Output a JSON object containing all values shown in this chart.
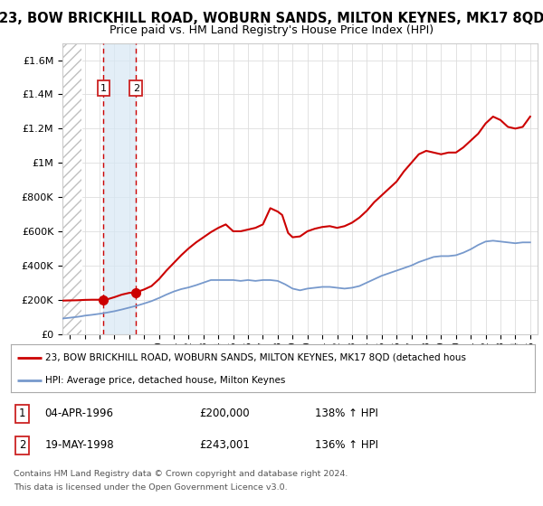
{
  "title": "23, BOW BRICKHILL ROAD, WOBURN SANDS, MILTON KEYNES, MK17 8QD",
  "subtitle": "Price paid vs. HM Land Registry's House Price Index (HPI)",
  "red_line_color": "#cc0000",
  "blue_line_color": "#7799cc",
  "dashed_color": "#cc0000",
  "highlight_bg": "#d8e8f5",
  "transaction1_year": 1996.27,
  "transaction1_price": 200000,
  "transaction2_year": 1998.45,
  "transaction2_price": 243001,
  "legend_line1": "23, BOW BRICKHILL ROAD, WOBURN SANDS, MILTON KEYNES, MK17 8QD (detached hous",
  "legend_line2": "HPI: Average price, detached house, Milton Keynes",
  "footer_line1": "Contains HM Land Registry data © Crown copyright and database right 2024.",
  "footer_line2": "This data is licensed under the Open Government Licence v3.0.",
  "table": [
    [
      "1",
      "04-APR-1996",
      "£200,000",
      "138% ↑ HPI"
    ],
    [
      "2",
      "19-MAY-1998",
      "£243,001",
      "136% ↑ HPI"
    ]
  ],
  "ylim": [
    0,
    1700000
  ],
  "xlim": [
    1993.5,
    2025.5
  ],
  "hatch_end": 1994.75,
  "red_x": [
    1993.5,
    1994.0,
    1994.5,
    1994.75,
    1995.0,
    1995.5,
    1996.0,
    1996.27,
    1996.5,
    1997.0,
    1997.5,
    1998.0,
    1998.45,
    1999.0,
    1999.5,
    2000.0,
    2000.5,
    2001.0,
    2001.5,
    2002.0,
    2002.5,
    2003.0,
    2003.5,
    2004.0,
    2004.5,
    2005.0,
    2005.5,
    2006.0,
    2006.5,
    2007.0,
    2007.5,
    2008.0,
    2008.3,
    2008.7,
    2009.0,
    2009.5,
    2010.0,
    2010.5,
    2011.0,
    2011.5,
    2012.0,
    2012.5,
    2013.0,
    2013.5,
    2014.0,
    2014.5,
    2015.0,
    2015.5,
    2016.0,
    2016.5,
    2017.0,
    2017.5,
    2018.0,
    2018.5,
    2019.0,
    2019.5,
    2020.0,
    2020.5,
    2021.0,
    2021.5,
    2022.0,
    2022.5,
    2023.0,
    2023.5,
    2024.0,
    2024.5,
    2025.0
  ],
  "red_y": [
    195000,
    196000,
    197000,
    198000,
    199000,
    200000,
    200000,
    200000,
    202000,
    215000,
    230000,
    240000,
    243001,
    260000,
    280000,
    320000,
    370000,
    415000,
    460000,
    500000,
    535000,
    565000,
    595000,
    620000,
    640000,
    600000,
    600000,
    610000,
    620000,
    640000,
    735000,
    715000,
    695000,
    590000,
    565000,
    570000,
    600000,
    615000,
    625000,
    630000,
    620000,
    630000,
    650000,
    680000,
    720000,
    770000,
    810000,
    850000,
    890000,
    950000,
    1000000,
    1050000,
    1070000,
    1060000,
    1050000,
    1060000,
    1060000,
    1090000,
    1130000,
    1170000,
    1230000,
    1270000,
    1250000,
    1210000,
    1200000,
    1210000,
    1270000
  ],
  "blue_x": [
    1993.5,
    1994.0,
    1994.5,
    1994.75,
    1995.0,
    1995.5,
    1996.0,
    1996.5,
    1997.0,
    1997.5,
    1998.0,
    1998.5,
    1999.0,
    1999.5,
    2000.0,
    2000.5,
    2001.0,
    2001.5,
    2002.0,
    2002.5,
    2003.0,
    2003.5,
    2004.0,
    2004.5,
    2005.0,
    2005.5,
    2006.0,
    2006.5,
    2007.0,
    2007.5,
    2008.0,
    2008.5,
    2009.0,
    2009.5,
    2010.0,
    2010.5,
    2011.0,
    2011.5,
    2012.0,
    2012.5,
    2013.0,
    2013.5,
    2014.0,
    2014.5,
    2015.0,
    2015.5,
    2016.0,
    2016.5,
    2017.0,
    2017.5,
    2018.0,
    2018.5,
    2019.0,
    2019.5,
    2020.0,
    2020.5,
    2021.0,
    2021.5,
    2022.0,
    2022.5,
    2023.0,
    2023.5,
    2024.0,
    2024.5,
    2025.0
  ],
  "blue_y": [
    90000,
    95000,
    100000,
    103000,
    107000,
    112000,
    118000,
    125000,
    133000,
    143000,
    154000,
    165000,
    178000,
    192000,
    210000,
    230000,
    248000,
    262000,
    272000,
    285000,
    300000,
    315000,
    315000,
    315000,
    315000,
    310000,
    315000,
    310000,
    315000,
    315000,
    310000,
    290000,
    265000,
    255000,
    265000,
    270000,
    275000,
    275000,
    270000,
    265000,
    270000,
    280000,
    300000,
    320000,
    340000,
    355000,
    370000,
    385000,
    400000,
    420000,
    435000,
    450000,
    455000,
    455000,
    460000,
    475000,
    495000,
    520000,
    540000,
    545000,
    540000,
    535000,
    530000,
    535000,
    535000
  ]
}
